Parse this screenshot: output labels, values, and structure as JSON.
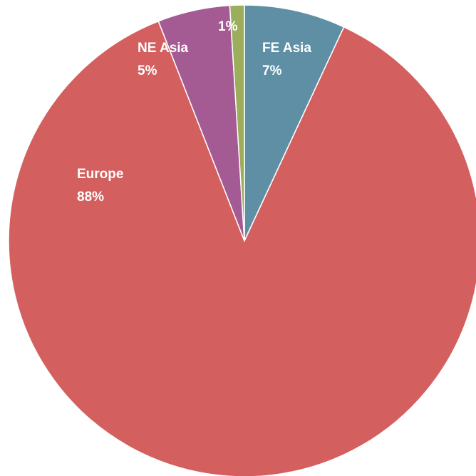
{
  "chart_data": {
    "type": "pie",
    "categories": [
      "FE Asia",
      "Europe",
      "NE Asia",
      null
    ],
    "values": [
      7,
      88,
      5,
      1
    ],
    "value_labels": [
      "7%",
      "88%",
      "5%",
      "1%"
    ],
    "colors": [
      "#5f8fa5",
      "#d45f5f",
      "#a45a93",
      "#9aae5c"
    ]
  }
}
